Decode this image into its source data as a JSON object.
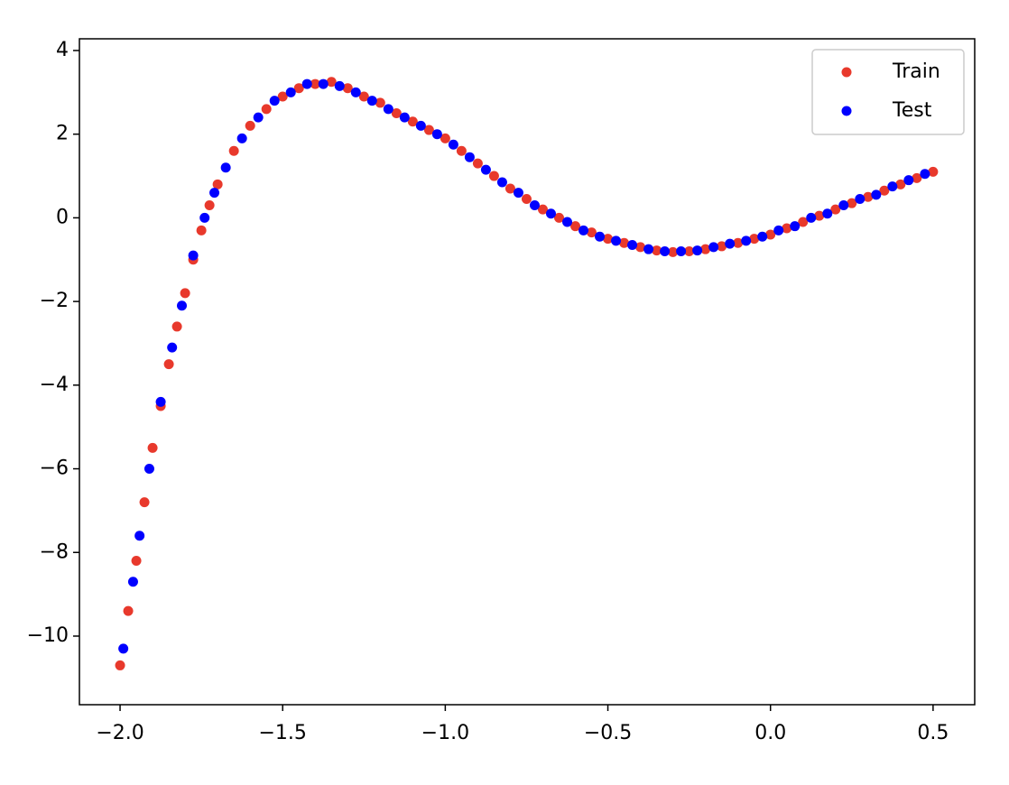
{
  "chart_data": {
    "type": "scatter",
    "series": [
      {
        "name": "Train",
        "color": "#e8392c",
        "x": [
          -2.0,
          -1.975,
          -1.95,
          -1.925,
          -1.9,
          -1.875,
          -1.85,
          -1.825,
          -1.8,
          -1.775,
          -1.75,
          -1.725,
          -1.7,
          -1.65,
          -1.6,
          -1.55,
          -1.5,
          -1.45,
          -1.4,
          -1.35,
          -1.3,
          -1.25,
          -1.2,
          -1.15,
          -1.1,
          -1.05,
          -1.0,
          -0.95,
          -0.9,
          -0.85,
          -0.8,
          -0.75,
          -0.7,
          -0.65,
          -0.6,
          -0.55,
          -0.5,
          -0.45,
          -0.4,
          -0.35,
          -0.3,
          -0.25,
          -0.2,
          -0.15,
          -0.1,
          -0.05,
          0.0,
          0.05,
          0.1,
          0.15,
          0.2,
          0.25,
          0.3,
          0.35,
          0.4,
          0.45,
          0.5
        ],
        "values": [
          -10.7,
          -9.4,
          -8.2,
          -6.8,
          -5.5,
          -4.5,
          -3.5,
          -2.6,
          -1.8,
          -1.0,
          -0.3,
          0.3,
          0.8,
          1.6,
          2.2,
          2.6,
          2.9,
          3.1,
          3.2,
          3.25,
          3.1,
          2.9,
          2.75,
          2.5,
          2.3,
          2.1,
          1.9,
          1.6,
          1.3,
          1.0,
          0.7,
          0.45,
          0.2,
          0.0,
          -0.2,
          -0.35,
          -0.5,
          -0.6,
          -0.7,
          -0.78,
          -0.82,
          -0.8,
          -0.75,
          -0.68,
          -0.6,
          -0.5,
          -0.4,
          -0.25,
          -0.1,
          0.05,
          0.2,
          0.35,
          0.5,
          0.65,
          0.8,
          0.95,
          1.1
        ]
      },
      {
        "name": "Test",
        "color": "#0000ff",
        "x": [
          -1.99,
          -1.96,
          -1.94,
          -1.91,
          -1.875,
          -1.84,
          -1.81,
          -1.775,
          -1.74,
          -1.71,
          -1.675,
          -1.625,
          -1.575,
          -1.525,
          -1.475,
          -1.425,
          -1.375,
          -1.325,
          -1.275,
          -1.225,
          -1.175,
          -1.125,
          -1.075,
          -1.025,
          -0.975,
          -0.925,
          -0.875,
          -0.825,
          -0.775,
          -0.725,
          -0.675,
          -0.625,
          -0.575,
          -0.525,
          -0.475,
          -0.425,
          -0.375,
          -0.325,
          -0.275,
          -0.225,
          -0.175,
          -0.125,
          -0.075,
          -0.025,
          0.025,
          0.075,
          0.125,
          0.175,
          0.225,
          0.275,
          0.325,
          0.375,
          0.425,
          0.475
        ],
        "values": [
          -10.3,
          -8.7,
          -7.6,
          -6.0,
          -4.4,
          -3.1,
          -2.1,
          -0.9,
          0.0,
          0.6,
          1.2,
          1.9,
          2.4,
          2.8,
          3.0,
          3.2,
          3.2,
          3.15,
          3.0,
          2.8,
          2.6,
          2.4,
          2.2,
          2.0,
          1.75,
          1.45,
          1.15,
          0.85,
          0.6,
          0.3,
          0.1,
          -0.1,
          -0.3,
          -0.45,
          -0.55,
          -0.65,
          -0.75,
          -0.8,
          -0.8,
          -0.78,
          -0.7,
          -0.62,
          -0.55,
          -0.45,
          -0.3,
          -0.2,
          0.0,
          0.1,
          0.3,
          0.45,
          0.55,
          0.75,
          0.9,
          1.05
        ]
      }
    ],
    "xlim": [
      -2.125,
      0.628
    ],
    "ylim": [
      -11.64,
      4.28
    ],
    "xticks": [
      {
        "value": -2,
        "label": "−2.0"
      },
      {
        "value": -1.5,
        "label": "−1.5"
      },
      {
        "value": -1,
        "label": "−1.0"
      },
      {
        "value": -0.5,
        "label": "−0.5"
      },
      {
        "value": 0,
        "label": "0.0"
      },
      0.5
    ],
    "yticks": [
      {
        "value": -10,
        "label": "−10"
      },
      {
        "value": -8,
        "label": "−8"
      },
      {
        "value": -6,
        "label": "−6"
      },
      {
        "value": -4,
        "label": "−4"
      },
      {
        "value": -2,
        "label": "−2"
      },
      0,
      2,
      4
    ],
    "grid": false,
    "legend": "upper right"
  }
}
